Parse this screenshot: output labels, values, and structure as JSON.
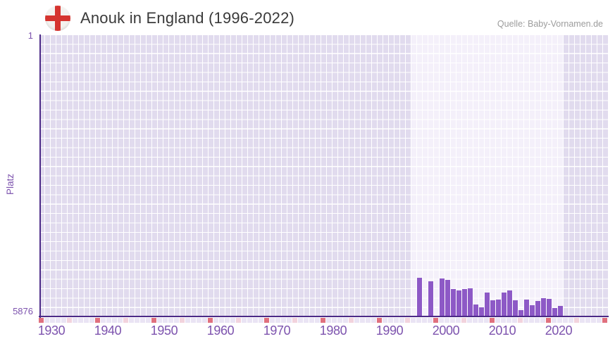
{
  "header": {
    "title": "Anouk in England (1996-2022)",
    "source": "Quelle: Baby-Vornamen.de",
    "flag_icon": "england-flag"
  },
  "chart_data": {
    "type": "bar",
    "title": "Anouk in England (1996-2022)",
    "xlabel": "",
    "ylabel": "Platz",
    "y_axis": {
      "top_label": "1",
      "bottom_label": "5876",
      "min": 1,
      "max": 5876,
      "inverted": true
    },
    "x_axis": {
      "start_year": 1930,
      "end_year": 2030,
      "tick_interval": 10,
      "tick_labels": [
        "1930",
        "1940",
        "1950",
        "1960",
        "1970",
        "1980",
        "1990",
        "2000",
        "2010",
        "2020"
      ],
      "decade_marker_years": [
        1930,
        1940,
        1950,
        1960,
        1970,
        1980,
        1990,
        2000,
        2010,
        2020,
        2030
      ],
      "half_decade_marker_years": [
        1935,
        1945,
        1955,
        1965,
        1975,
        1985,
        1995,
        2005,
        2015,
        2025
      ]
    },
    "highlight_range": {
      "from": 1996,
      "to": 2022
    },
    "legend": [],
    "grid": true,
    "series": [
      {
        "year": 1996,
        "platz": null
      },
      {
        "year": 1997,
        "platz": 5074
      },
      {
        "year": 1998,
        "platz": null
      },
      {
        "year": 1999,
        "platz": 5138
      },
      {
        "year": 2000,
        "platz": null
      },
      {
        "year": 2001,
        "platz": 5084
      },
      {
        "year": 2002,
        "platz": 5113
      },
      {
        "year": 2003,
        "platz": 5304
      },
      {
        "year": 2004,
        "platz": 5336
      },
      {
        "year": 2005,
        "platz": 5299
      },
      {
        "year": 2006,
        "platz": 5297
      },
      {
        "year": 2007,
        "platz": 5627
      },
      {
        "year": 2008,
        "platz": 5690
      },
      {
        "year": 2009,
        "platz": 5383
      },
      {
        "year": 2010,
        "platz": 5539
      },
      {
        "year": 2011,
        "platz": 5519
      },
      {
        "year": 2012,
        "platz": 5372
      },
      {
        "year": 2013,
        "platz": 5332
      },
      {
        "year": 2014,
        "platz": 5539
      },
      {
        "year": 2015,
        "platz": 5740
      },
      {
        "year": 2016,
        "platz": 5529
      },
      {
        "year": 2017,
        "platz": 5643
      },
      {
        "year": 2018,
        "platz": 5553
      },
      {
        "year": 2019,
        "platz": 5494
      },
      {
        "year": 2020,
        "platz": 5515
      },
      {
        "year": 2021,
        "platz": 5694
      },
      {
        "year": 2022,
        "platz": 5662
      }
    ]
  },
  "colors": {
    "bar": "#8d59c6",
    "axis": "#4c2a87",
    "grid_cell": "#e1dbee",
    "grid_cell_highlight": "#f4f0fa",
    "grid_line": "#ffffff",
    "marker_default": "#eae4f4",
    "marker_decade": "#e0707e",
    "marker_half_decade": "#f2d3dd",
    "tick_text": "#7d53ae",
    "title_text": "#3a3a3a",
    "source_text": "#9c9c9c",
    "flag_red": "#d5342f",
    "flag_white": "#f4f2ef"
  }
}
